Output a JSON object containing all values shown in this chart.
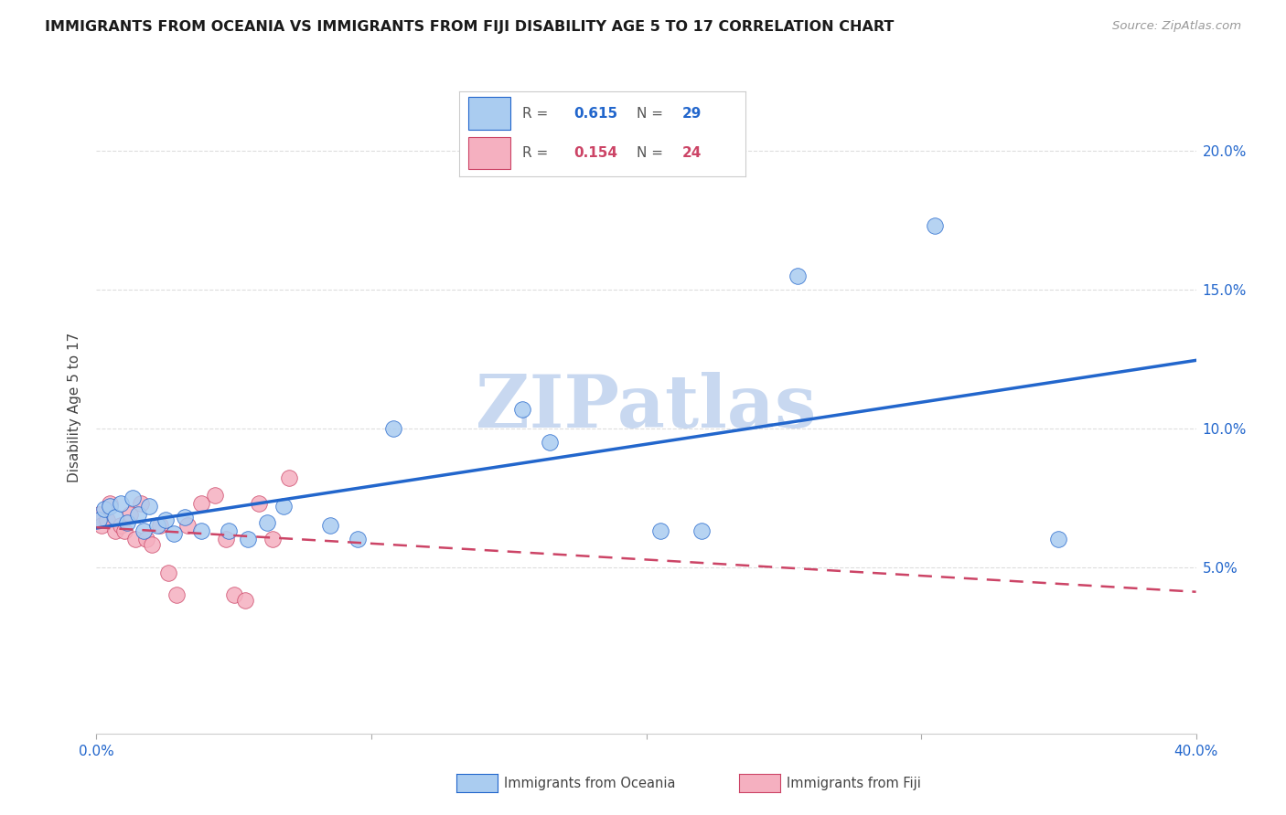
{
  "title": "IMMIGRANTS FROM OCEANIA VS IMMIGRANTS FROM FIJI DISABILITY AGE 5 TO 17 CORRELATION CHART",
  "source": "Source: ZipAtlas.com",
  "ylabel": "Disability Age 5 to 17",
  "legend1_label": "Immigrants from Oceania",
  "legend2_label": "Immigrants from Fiji",
  "R1": 0.615,
  "N1": 29,
  "R2": 0.154,
  "N2": 24,
  "color1": "#aaccf0",
  "color2": "#f5b0c0",
  "line1_color": "#2266cc",
  "line2_color": "#cc4466",
  "xlim": [
    0.0,
    0.4
  ],
  "ylim": [
    -0.01,
    0.225
  ],
  "x_ticks": [
    0.0,
    0.1,
    0.2,
    0.3,
    0.4
  ],
  "x_tick_labels": [
    "0.0%",
    "",
    "",
    "",
    "40.0%"
  ],
  "y_ticks": [
    0.05,
    0.1,
    0.15,
    0.2
  ],
  "y_tick_labels": [
    "5.0%",
    "10.0%",
    "15.0%",
    "20.0%"
  ],
  "oceania_x": [
    0.001,
    0.003,
    0.005,
    0.007,
    0.009,
    0.011,
    0.013,
    0.015,
    0.017,
    0.019,
    0.022,
    0.025,
    0.028,
    0.032,
    0.038,
    0.048,
    0.055,
    0.062,
    0.068,
    0.085,
    0.095,
    0.108,
    0.155,
    0.165,
    0.205,
    0.22,
    0.255,
    0.305,
    0.35
  ],
  "oceania_y": [
    0.067,
    0.071,
    0.072,
    0.068,
    0.073,
    0.066,
    0.075,
    0.069,
    0.063,
    0.072,
    0.065,
    0.067,
    0.062,
    0.068,
    0.063,
    0.063,
    0.06,
    0.066,
    0.072,
    0.065,
    0.06,
    0.1,
    0.107,
    0.095,
    0.063,
    0.063,
    0.155,
    0.173,
    0.06
  ],
  "fiji_x": [
    0.001,
    0.002,
    0.004,
    0.005,
    0.007,
    0.009,
    0.01,
    0.012,
    0.014,
    0.016,
    0.018,
    0.02,
    0.023,
    0.026,
    0.029,
    0.033,
    0.038,
    0.043,
    0.047,
    0.05,
    0.054,
    0.059,
    0.064,
    0.07
  ],
  "fiji_y": [
    0.069,
    0.065,
    0.067,
    0.073,
    0.063,
    0.065,
    0.063,
    0.069,
    0.06,
    0.073,
    0.06,
    0.058,
    0.065,
    0.048,
    0.04,
    0.065,
    0.073,
    0.076,
    0.06,
    0.04,
    0.038,
    0.073,
    0.06,
    0.082
  ],
  "watermark": "ZIPatlas",
  "watermark_color": "#c8d8f0",
  "background_color": "#ffffff",
  "grid_color": "#dddddd"
}
